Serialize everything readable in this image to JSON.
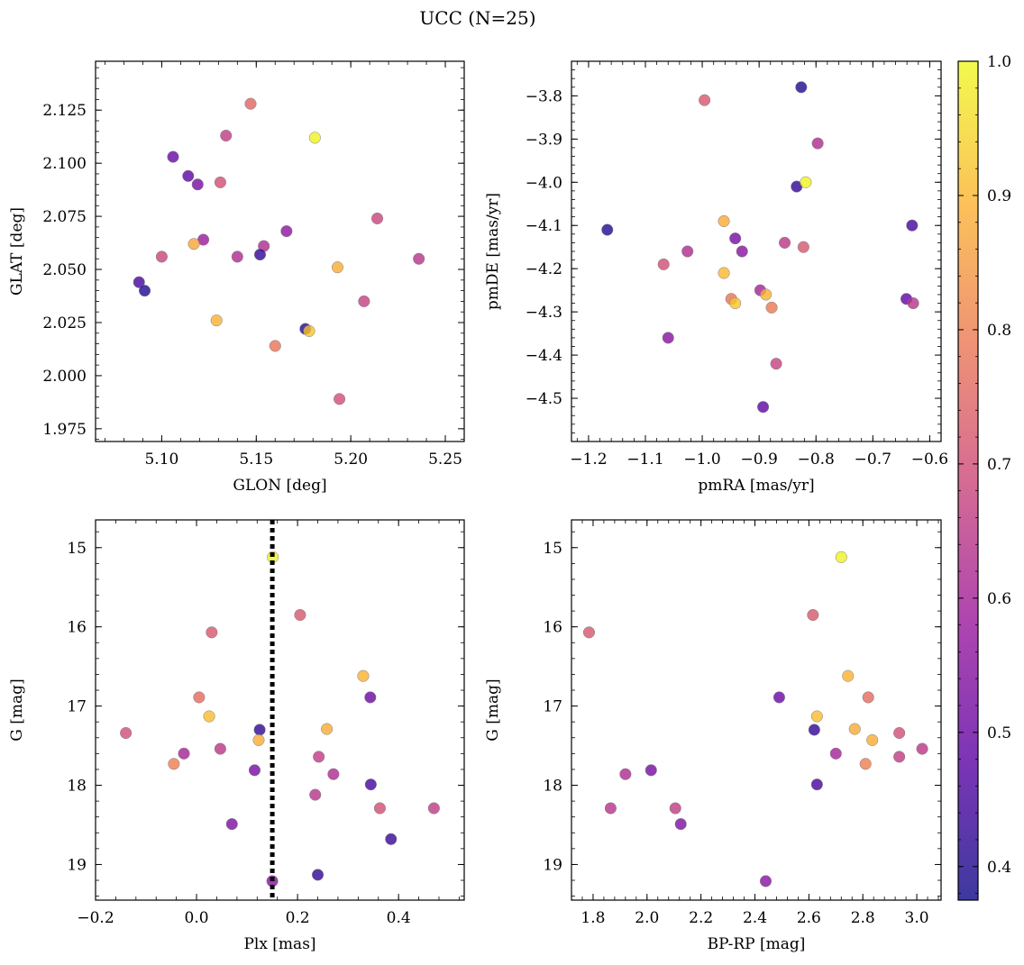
{
  "figure": {
    "title": "UCC (N=25)"
  },
  "colormap": {
    "name": "plasma",
    "stops": [
      "#0d0887",
      "#5b02a3",
      "#9a179b",
      "#cb4678",
      "#eb7852",
      "#fbb32f",
      "#eff821"
    ],
    "alpha": 0.8,
    "range": [
      0.375,
      1.0
    ],
    "ticks": [
      0.4,
      0.5,
      0.6,
      0.7,
      0.8,
      0.9,
      1.0
    ]
  },
  "chart_data": [
    {
      "type": "scatter",
      "xlabel": "GLON [deg]",
      "ylabel": "GLAT [deg]",
      "xlim": [
        5.065,
        5.26
      ],
      "ylim": [
        1.969,
        2.148
      ],
      "y_inverted": false,
      "xticks": [
        5.1,
        5.15,
        5.2,
        5.25
      ],
      "yticks": [
        1.975,
        2.0,
        2.025,
        2.05,
        2.075,
        2.1,
        2.125
      ],
      "x": [
        5.147,
        5.181,
        5.134,
        5.106,
        5.114,
        5.119,
        5.131,
        5.214,
        5.166,
        5.122,
        5.117,
        5.154,
        5.1,
        5.14,
        5.152,
        5.236,
        5.193,
        5.088,
        5.091,
        5.207,
        5.129,
        5.176,
        5.178,
        5.16,
        5.194
      ],
      "y": [
        2.128,
        2.112,
        2.113,
        2.103,
        2.094,
        2.09,
        2.091,
        2.074,
        2.068,
        2.064,
        2.062,
        2.061,
        2.056,
        2.056,
        2.057,
        2.055,
        2.051,
        2.044,
        2.04,
        2.035,
        2.026,
        2.022,
        2.021,
        2.014,
        1.989
      ],
      "c": [
        0.75,
        0.99,
        0.66,
        0.5,
        0.48,
        0.52,
        0.7,
        0.68,
        0.56,
        0.58,
        0.87,
        0.62,
        0.68,
        0.62,
        0.42,
        0.64,
        0.88,
        0.45,
        0.4,
        0.67,
        0.89,
        0.4,
        0.92,
        0.78,
        0.7
      ]
    },
    {
      "type": "scatter",
      "xlabel": "pmRA [mas/yr]",
      "ylabel": "pmDE [mas/yr]",
      "xlim": [
        -1.23,
        -0.58
      ],
      "ylim": [
        -4.6,
        -3.72
      ],
      "y_inverted": false,
      "xticks": [
        -1.2,
        -1.1,
        -1.0,
        -0.9,
        -0.8,
        -0.7,
        -0.6
      ],
      "yticks": [
        -4.5,
        -4.4,
        -4.3,
        -4.2,
        -4.1,
        -4.0,
        -3.9,
        -3.8
      ],
      "x": [
        -0.826,
        -0.996,
        -0.797,
        -0.834,
        -0.818,
        -1.167,
        -0.631,
        -0.962,
        -0.942,
        -0.855,
        -0.822,
        -1.068,
        -1.026,
        -0.93,
        -0.962,
        -0.949,
        -0.942,
        -0.898,
        -0.888,
        -0.878,
        -0.641,
        -0.629,
        -1.06,
        -0.87,
        -0.893
      ],
      "y": [
        -3.78,
        -3.81,
        -3.91,
        -4.01,
        -4.0,
        -4.11,
        -4.1,
        -4.09,
        -4.13,
        -4.14,
        -4.15,
        -4.19,
        -4.16,
        -4.16,
        -4.21,
        -4.27,
        -4.28,
        -4.25,
        -4.26,
        -4.29,
        -4.27,
        -4.28,
        -4.36,
        -4.42,
        -4.52
      ],
      "c": [
        0.4,
        0.72,
        0.62,
        0.42,
        0.99,
        0.4,
        0.45,
        0.88,
        0.52,
        0.65,
        0.72,
        0.7,
        0.62,
        0.55,
        0.9,
        0.78,
        0.92,
        0.6,
        0.89,
        0.79,
        0.48,
        0.64,
        0.55,
        0.67,
        0.48
      ]
    },
    {
      "type": "scatter",
      "xlabel": "Plx [mas]",
      "ylabel": "G [mag]",
      "xlim": [
        -0.2,
        0.53
      ],
      "ylim": [
        19.45,
        14.65
      ],
      "y_inverted": true,
      "xticks": [
        -0.2,
        0.0,
        0.2,
        0.4
      ],
      "yticks": [
        15,
        16,
        17,
        18,
        19
      ],
      "vline": {
        "x": 0.15,
        "color": "#000000",
        "style": "dotted"
      },
      "x": [
        0.151,
        0.205,
        0.03,
        0.33,
        0.005,
        0.344,
        0.025,
        0.258,
        0.125,
        -0.14,
        0.123,
        -0.045,
        0.047,
        0.242,
        -0.025,
        0.115,
        0.271,
        0.345,
        0.363,
        0.47,
        0.235,
        0.07,
        0.385,
        0.24,
        0.15
      ],
      "y": [
        15.12,
        15.85,
        16.07,
        16.62,
        16.89,
        16.89,
        17.13,
        17.29,
        17.3,
        17.34,
        17.43,
        17.73,
        17.54,
        17.64,
        17.6,
        17.81,
        17.86,
        17.99,
        18.29,
        18.29,
        18.12,
        18.49,
        18.68,
        19.13,
        19.21
      ],
      "c": [
        0.99,
        0.72,
        0.72,
        0.89,
        0.76,
        0.5,
        0.91,
        0.88,
        0.42,
        0.7,
        0.88,
        0.8,
        0.65,
        0.66,
        0.6,
        0.52,
        0.62,
        0.45,
        0.7,
        0.66,
        0.64,
        0.53,
        0.43,
        0.42,
        0.55
      ]
    },
    {
      "type": "scatter",
      "xlabel": "BP-RP [mag]",
      "ylabel": "G [mag]",
      "xlim": [
        1.72,
        3.09
      ],
      "ylim": [
        19.45,
        14.65
      ],
      "y_inverted": true,
      "xticks": [
        1.8,
        2.0,
        2.2,
        2.4,
        2.6,
        2.8,
        3.0
      ],
      "yticks": [
        15,
        16,
        17,
        18,
        19
      ],
      "x": [
        2.72,
        2.615,
        1.785,
        2.745,
        2.49,
        2.82,
        2.63,
        2.77,
        2.62,
        2.935,
        2.835,
        2.81,
        3.02,
        2.935,
        2.7,
        2.015,
        1.92,
        2.63,
        1.865,
        2.105,
        2.125,
        2.44
      ],
      "y": [
        15.12,
        15.85,
        16.07,
        16.62,
        16.89,
        16.89,
        17.13,
        17.29,
        17.3,
        17.34,
        17.43,
        17.73,
        17.54,
        17.64,
        17.6,
        17.81,
        17.86,
        17.99,
        18.29,
        18.29,
        18.49,
        19.21
      ],
      "c": [
        0.99,
        0.72,
        0.72,
        0.89,
        0.5,
        0.76,
        0.91,
        0.88,
        0.42,
        0.7,
        0.88,
        0.8,
        0.65,
        0.66,
        0.6,
        0.52,
        0.62,
        0.45,
        0.64,
        0.66,
        0.53,
        0.55
      ]
    }
  ]
}
